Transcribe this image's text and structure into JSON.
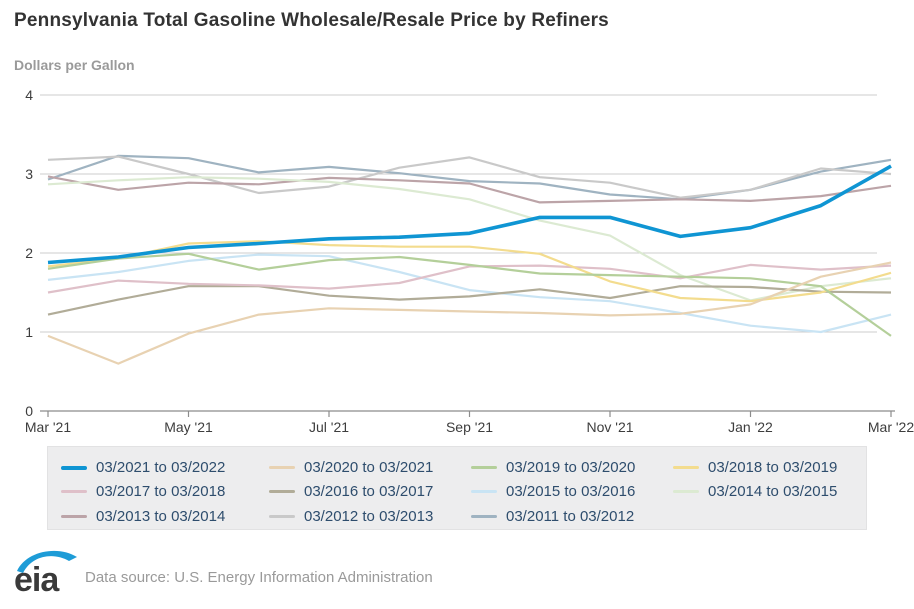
{
  "header": {
    "title": "Pennsylvania Total Gasoline Wholesale/Resale Price by Refiners",
    "subtitle": "Dollars per Gallon"
  },
  "chart_data": {
    "type": "line",
    "title": "Pennsylvania Total Gasoline Wholesale/Resale Price by Refiners",
    "ylabel": "Dollars per Gallon",
    "ylim": [
      0,
      4
    ],
    "yticks": [
      0,
      1,
      2,
      3,
      4
    ],
    "grid": "horizontal",
    "legend_position": "bottom",
    "months": 13,
    "x_tick_every": 2,
    "x_labels": [
      "Mar '21",
      "May '21",
      "Jul '21",
      "Sep '21",
      "Nov '21",
      "Jan '22",
      "Mar '22"
    ],
    "series": [
      {
        "name": "03/2021 to 03/2022",
        "color": "#0f95d3",
        "width": 3.6,
        "values": [
          1.88,
          1.95,
          2.07,
          2.12,
          2.18,
          2.2,
          2.25,
          2.45,
          2.45,
          2.21,
          2.32,
          2.6,
          3.1
        ]
      },
      {
        "name": "03/2020 to 03/2021",
        "color": "#e8d2b2",
        "width": 2.2,
        "values": [
          0.95,
          0.6,
          0.98,
          1.22,
          1.3,
          1.28,
          1.26,
          1.24,
          1.21,
          1.23,
          1.35,
          1.7,
          1.88
        ]
      },
      {
        "name": "03/2019 to 03/2020",
        "color": "#b4cf9a",
        "width": 2.2,
        "values": [
          1.8,
          1.93,
          1.99,
          1.79,
          1.91,
          1.95,
          1.85,
          1.74,
          1.72,
          1.7,
          1.68,
          1.58,
          0.95
        ]
      },
      {
        "name": "03/2018 to 03/2019",
        "color": "#f3dc8e",
        "width": 2.2,
        "values": [
          1.83,
          1.93,
          2.12,
          2.15,
          2.1,
          2.08,
          2.08,
          1.99,
          1.64,
          1.43,
          1.39,
          1.5,
          1.75
        ]
      },
      {
        "name": "03/2017 to 03/2018",
        "color": "#dfc0c9",
        "width": 2.2,
        "values": [
          1.5,
          1.65,
          1.61,
          1.59,
          1.55,
          1.62,
          1.83,
          1.84,
          1.8,
          1.68,
          1.85,
          1.79,
          1.84
        ]
      },
      {
        "name": "03/2016 to 03/2017",
        "color": "#b1ac98",
        "width": 2.2,
        "values": [
          1.22,
          1.41,
          1.58,
          1.58,
          1.46,
          1.41,
          1.45,
          1.54,
          1.43,
          1.58,
          1.57,
          1.51,
          1.5
        ]
      },
      {
        "name": "03/2015 to 03/2016",
        "color": "#c9e4f4",
        "width": 2.2,
        "values": [
          1.66,
          1.76,
          1.9,
          1.98,
          1.96,
          1.76,
          1.53,
          1.44,
          1.39,
          1.24,
          1.08,
          1.0,
          1.22
        ]
      },
      {
        "name": "03/2014 to 03/2015",
        "color": "#dcead2",
        "width": 2.2,
        "values": [
          2.87,
          2.92,
          2.96,
          2.94,
          2.9,
          2.81,
          2.68,
          2.41,
          2.22,
          1.72,
          1.4,
          1.58,
          1.68
        ]
      },
      {
        "name": "03/2013 to 03/2014",
        "color": "#bca4a8",
        "width": 2.2,
        "values": [
          2.97,
          2.8,
          2.89,
          2.87,
          2.95,
          2.92,
          2.88,
          2.64,
          2.66,
          2.68,
          2.66,
          2.72,
          2.85
        ]
      },
      {
        "name": "03/2012 to 03/2013",
        "color": "#c9c9c9",
        "width": 2.2,
        "values": [
          3.18,
          3.22,
          3.0,
          2.76,
          2.84,
          3.08,
          3.21,
          2.96,
          2.89,
          2.7,
          2.8,
          3.07,
          3.0
        ]
      },
      {
        "name": "03/2011 to 03/2012",
        "color": "#9fb3c1",
        "width": 2.2,
        "values": [
          2.93,
          3.23,
          3.2,
          3.02,
          3.09,
          3.01,
          2.91,
          2.88,
          2.74,
          2.68,
          2.8,
          3.03,
          3.18
        ]
      }
    ]
  },
  "footer": {
    "logo_text": "eia",
    "logo_accent_color": "#1e9cd7",
    "source": "Data source: U.S. Energy Information Administration"
  }
}
